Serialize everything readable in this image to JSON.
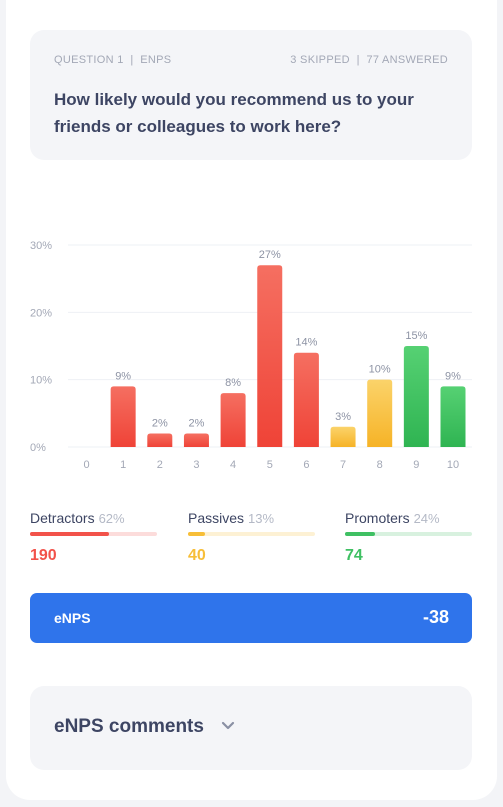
{
  "question": {
    "number_label": "QUESTION 1",
    "type_label": "ENPS",
    "skipped_label": "3 SKIPPED",
    "answered_label": "77 ANSWERED",
    "separator": "|",
    "title": "How likely would you recommend us to your friends or colleagues to work here?"
  },
  "chart_data": {
    "type": "bar",
    "categories": [
      "0",
      "1",
      "2",
      "3",
      "4",
      "5",
      "6",
      "7",
      "8",
      "9",
      "10"
    ],
    "values": [
      0,
      9,
      2,
      2,
      8,
      27,
      14,
      3,
      10,
      15,
      9
    ],
    "value_labels": [
      "",
      "9%",
      "2%",
      "2%",
      "8%",
      "27%",
      "14%",
      "3%",
      "10%",
      "15%",
      "9%"
    ],
    "y_ticks": [
      0,
      10,
      20,
      30
    ],
    "y_tick_labels": [
      "0%",
      "10%",
      "20%",
      "30%"
    ],
    "ylim": [
      0,
      30
    ],
    "grid": true,
    "groups": [
      "detractor",
      "detractor",
      "detractor",
      "detractor",
      "detractor",
      "detractor",
      "detractor",
      "passive",
      "passive",
      "promoter",
      "promoter"
    ]
  },
  "colors": {
    "detractor": "#f2524a",
    "passive": "#f7be38",
    "promoter": "#3fc063",
    "accent": "#2f74eb"
  },
  "legend": [
    {
      "key": "detractor",
      "label": "Detractors",
      "percent": "62%",
      "fraction": 0.62,
      "count": "190",
      "color": "#f2524a",
      "track": "#fcdcdb"
    },
    {
      "key": "passive",
      "label": "Passives",
      "percent": "13%",
      "fraction": 0.13,
      "count": "40",
      "color": "#f7be38",
      "track": "#fdf1d4"
    },
    {
      "key": "promoter",
      "label": "Promoters",
      "percent": "24%",
      "fraction": 0.24,
      "count": "74",
      "color": "#3fc063",
      "track": "#d8f1df"
    }
  ],
  "enps": {
    "label": "eNPS",
    "value": "-38"
  },
  "comments": {
    "title": "eNPS comments",
    "icon": "chevron-down-icon"
  }
}
